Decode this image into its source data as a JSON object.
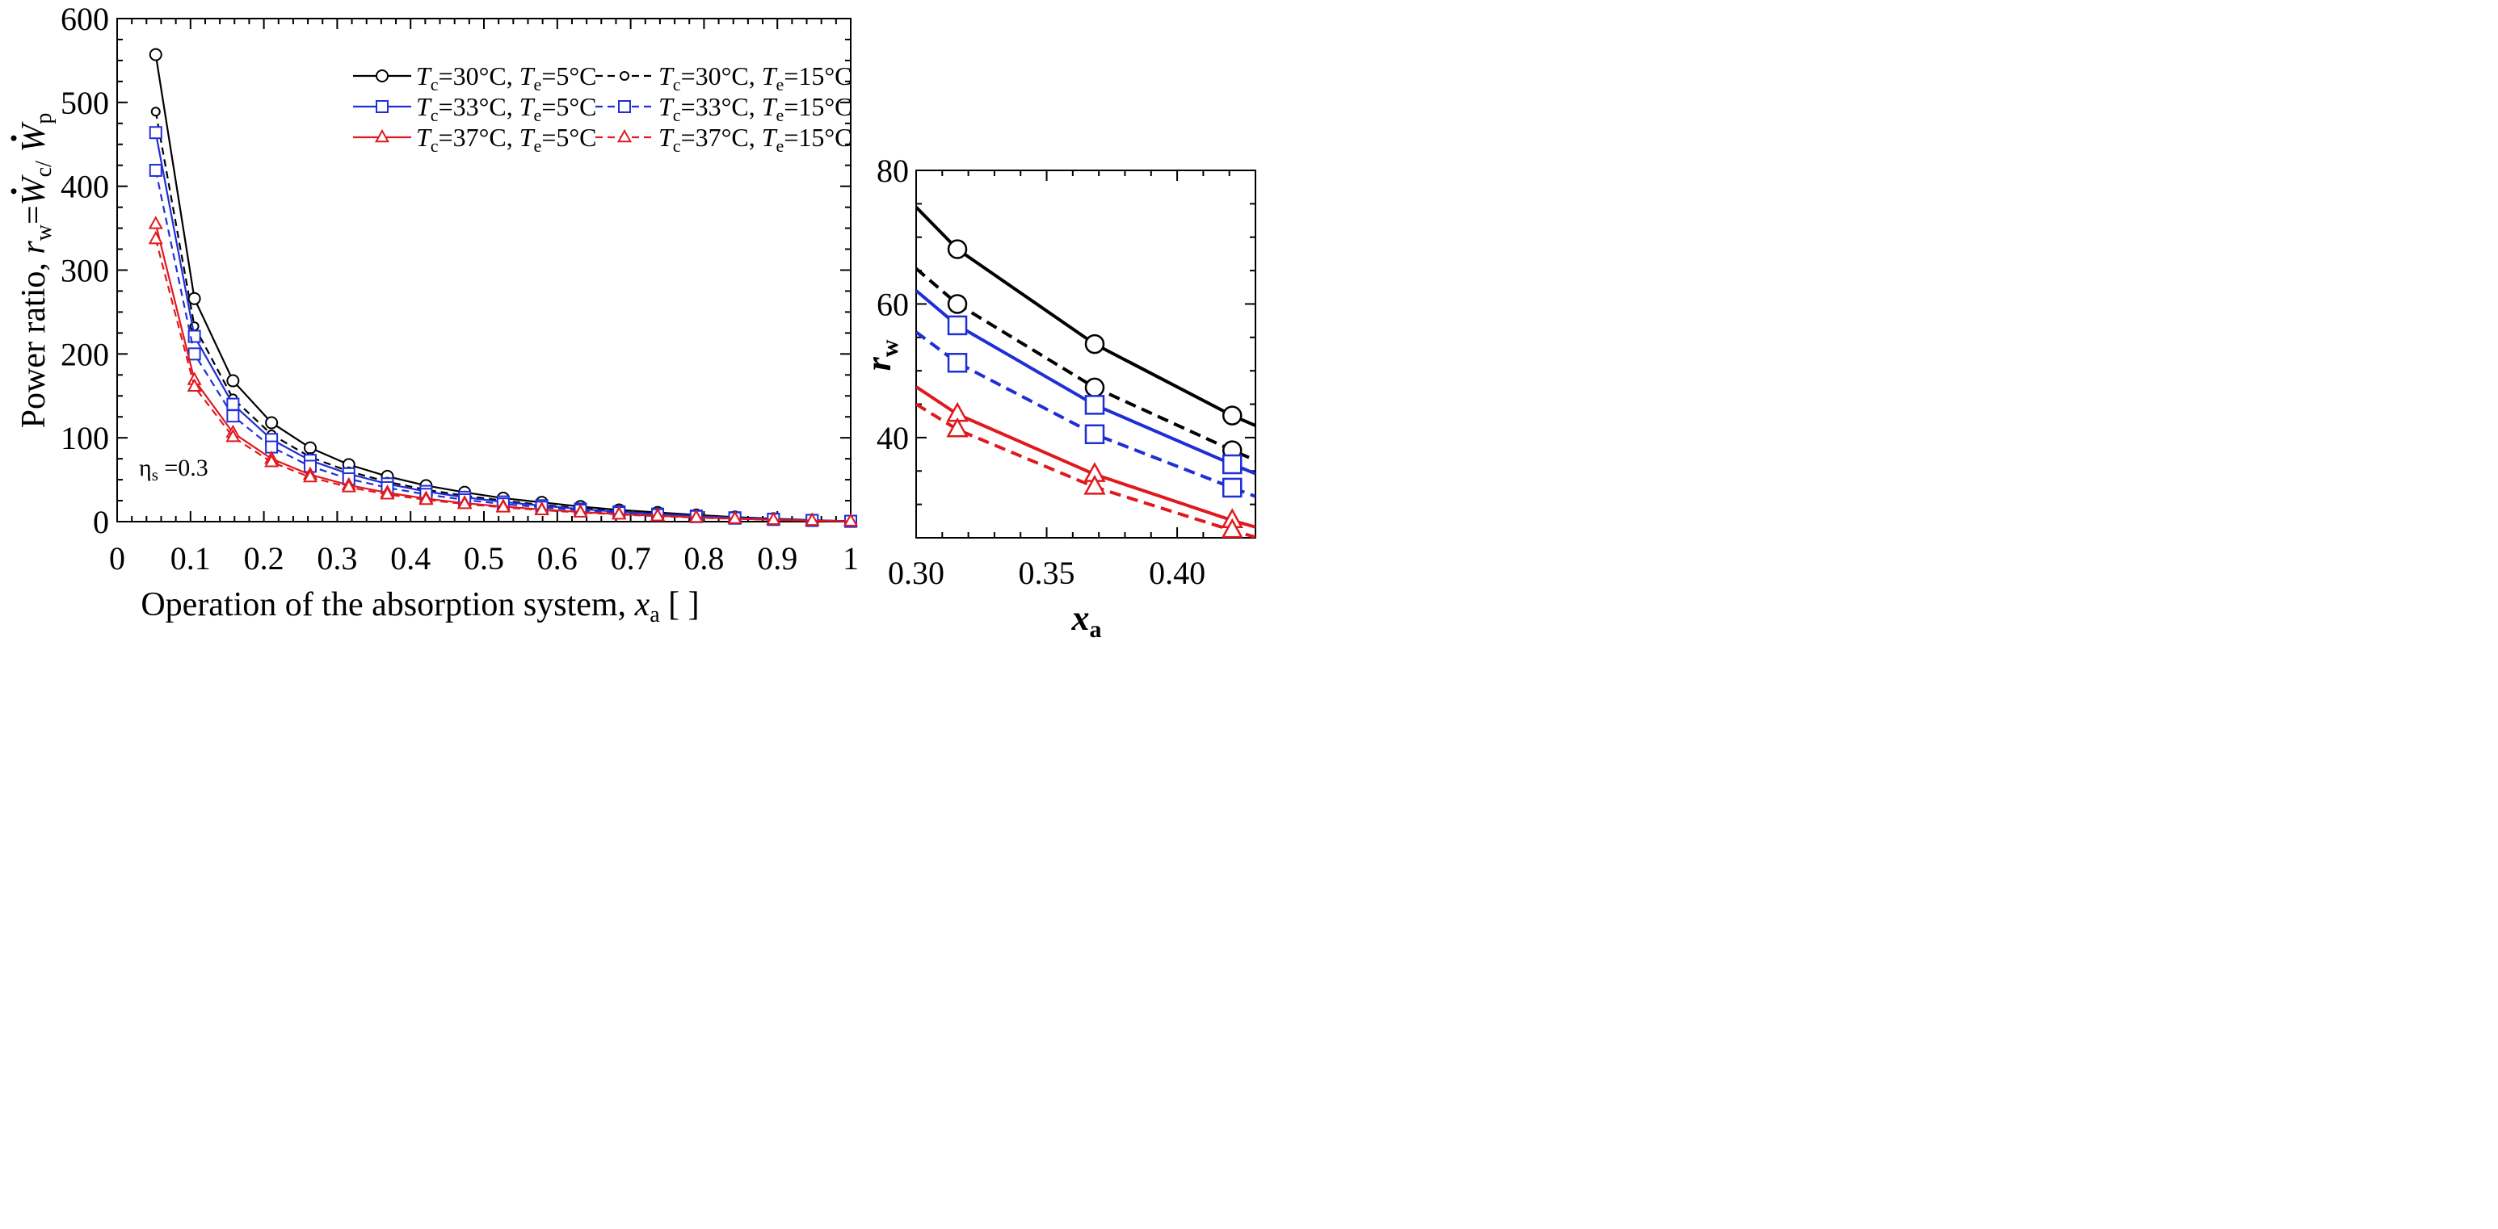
{
  "chart_data": [
    {
      "type": "line",
      "panel": "main",
      "title": "",
      "xlabel": "Operation of the absorption system, x_a [ ]",
      "xlabel_parts": {
        "prefix": "Operation of the absorption system, ",
        "var": "x",
        "sub": "a",
        "suffix": " [ ]"
      },
      "ylabel": "Power ratio, r_w = Ẇ_c/ Ẇ_p",
      "ylabel_parts": {
        "prefix": "Power ratio, ",
        "r": "r",
        "r_sub": "w",
        "eq": "=",
        "W1": "W",
        "W1_sub": "c/",
        "W2": "W",
        "W2_sub": "p"
      },
      "xlim": [
        0,
        1
      ],
      "ylim": [
        0,
        600
      ],
      "xticks": [
        "0",
        "0.1",
        "0.2",
        "0.3",
        "0.4",
        "0.5",
        "0.6",
        "0.7",
        "0.8",
        "0.9",
        "1"
      ],
      "yticks": [
        "0",
        "100",
        "200",
        "300",
        "400",
        "500",
        "600"
      ],
      "annotation": {
        "symbol": "η",
        "sub": "s",
        "text": " =0.3"
      },
      "x": [
        0.0526,
        0.1053,
        0.1579,
        0.2105,
        0.2632,
        0.3158,
        0.3684,
        0.4211,
        0.4737,
        0.5263,
        0.5789,
        0.6316,
        0.6842,
        0.7368,
        0.7895,
        0.8421,
        0.8947,
        0.9474,
        1.0
      ],
      "series": [
        {
          "name": "Tc=30°C, Te=5°C",
          "Tc": "30°C",
          "Te": "5°C",
          "color": "#000000",
          "dashed": false,
          "marker": "circle",
          "values": [
            557,
            266,
            168,
            118,
            88,
            68,
            54,
            43,
            35,
            28,
            23,
            18,
            14,
            11,
            8,
            5.5,
            3.5,
            1.8,
            0.5
          ]
        },
        {
          "name": "Tc=30°C, Te=15°C",
          "Tc": "30°C",
          "Te": "15°C",
          "color": "#000000",
          "dashed": true,
          "marker": "circle",
          "values": [
            489,
            233,
            147,
            104,
            77,
            60,
            47.5,
            38,
            31,
            25,
            20,
            16,
            12.5,
            9.5,
            7,
            4.8,
            3,
            1.6,
            0.4
          ]
        },
        {
          "name": "Tc=33°C, Te=5°C",
          "Tc": "33°C",
          "Te": "5°C",
          "color": "#1f2fd6",
          "dashed": false,
          "marker": "square",
          "values": [
            464,
            221,
            140,
            98,
            73,
            57,
            45,
            36,
            29,
            23.5,
            19,
            15,
            11.7,
            9,
            6.7,
            4.6,
            2.9,
            1.5,
            0.4
          ]
        },
        {
          "name": "Tc=33°C, Te=15°C",
          "Tc": "33°C",
          "Te": "15°C",
          "color": "#1f2fd6",
          "dashed": true,
          "marker": "square",
          "values": [
            419,
            200,
            126,
            89,
            66,
            51,
            40.5,
            32.5,
            26,
            21,
            17,
            13.5,
            10.5,
            8,
            6,
            4.1,
            2.6,
            1.4,
            0.4
          ]
        },
        {
          "name": "Tc=37°C, Te=5°C",
          "Tc": "37°C",
          "Te": "5°C",
          "color": "#e0191e",
          "dashed": false,
          "marker": "triangle",
          "values": [
            355,
            169,
            106,
            75,
            56,
            43.5,
            34.5,
            27.5,
            22,
            18,
            14.5,
            11.5,
            9,
            7,
            5.1,
            3.5,
            2.2,
            1.2,
            0.3
          ]
        },
        {
          "name": "Tc=37°C, Te=15°C",
          "Tc": "37°C",
          "Te": "15°C",
          "color": "#e0191e",
          "dashed": true,
          "marker": "triangle",
          "values": [
            337,
            161,
            101,
            71,
            53,
            41,
            32.5,
            26,
            21,
            17,
            13.7,
            10.9,
            8.5,
            6.5,
            4.8,
            3.3,
            2.1,
            1.1,
            0.3
          ]
        }
      ]
    },
    {
      "type": "line",
      "panel": "inset",
      "title": "",
      "xlabel": "x_a",
      "xlabel_parts": {
        "var": "x",
        "sub": "a"
      },
      "ylabel": "r_w",
      "ylabel_parts": {
        "var": "r",
        "sub": "w"
      },
      "xlim": [
        0.3,
        0.43
      ],
      "ylim": [
        25,
        80
      ],
      "xticks": [
        "0.30",
        "0.35",
        "0.40"
      ],
      "yticks": [
        "40",
        "60",
        "80"
      ],
      "series": [
        {
          "name": "Tc=30°C, Te=5°C",
          "color": "#000000",
          "dashed": false,
          "marker": "circle",
          "x": [
            0.3,
            0.3158,
            0.3684,
            0.4211,
            0.43
          ],
          "values": [
            74.5,
            68.2,
            54.0,
            43.3,
            41.8
          ],
          "marker_x": [
            0.3158,
            0.3684,
            0.4211
          ],
          "marker_values": [
            68.2,
            54.0,
            43.3
          ]
        },
        {
          "name": "Tc=30°C, Te=15°C",
          "color": "#000000",
          "dashed": true,
          "marker": "circle",
          "x": [
            0.3,
            0.3158,
            0.3684,
            0.4211,
            0.43
          ],
          "values": [
            65.3,
            60.0,
            47.5,
            38.1,
            36.6
          ],
          "marker_x": [
            0.3158,
            0.3684,
            0.4211
          ],
          "marker_values": [
            60.0,
            47.5,
            38.1
          ]
        },
        {
          "name": "Tc=33°C, Te=5°C",
          "color": "#1f2fd6",
          "dashed": false,
          "marker": "square",
          "x": [
            0.3,
            0.3158,
            0.3684,
            0.4211,
            0.43
          ],
          "values": [
            62.0,
            56.8,
            44.9,
            36.0,
            34.6
          ],
          "marker_x": [
            0.3158,
            0.3684,
            0.4211
          ],
          "marker_values": [
            56.8,
            44.9,
            36.0
          ]
        },
        {
          "name": "Tc=33°C, Te=15°C",
          "color": "#1f2fd6",
          "dashed": true,
          "marker": "square",
          "x": [
            0.3,
            0.3158,
            0.3684,
            0.4211,
            0.43
          ],
          "values": [
            55.8,
            51.2,
            40.5,
            32.5,
            31.2
          ],
          "marker_x": [
            0.3158,
            0.3684,
            0.4211
          ],
          "marker_values": [
            51.2,
            40.5,
            32.5
          ]
        },
        {
          "name": "Tc=37°C, Te=5°C",
          "color": "#e0191e",
          "dashed": false,
          "marker": "triangle",
          "x": [
            0.3,
            0.3158,
            0.3684,
            0.4211,
            0.43
          ],
          "values": [
            47.6,
            43.5,
            34.5,
            27.6,
            26.6
          ],
          "marker_x": [
            0.3158,
            0.3684,
            0.4211
          ],
          "marker_values": [
            43.5,
            34.5,
            27.6
          ]
        },
        {
          "name": "Tc=37°C, Te=15°C",
          "color": "#e0191e",
          "dashed": true,
          "marker": "triangle",
          "x": [
            0.3,
            0.3158,
            0.3684,
            0.4211,
            0.43
          ],
          "values": [
            45.0,
            41.2,
            32.6,
            26.1,
            25.1
          ],
          "marker_x": [
            0.3158,
            0.3684,
            0.4211
          ],
          "marker_values": [
            41.2,
            32.6,
            26.1
          ]
        }
      ]
    }
  ]
}
